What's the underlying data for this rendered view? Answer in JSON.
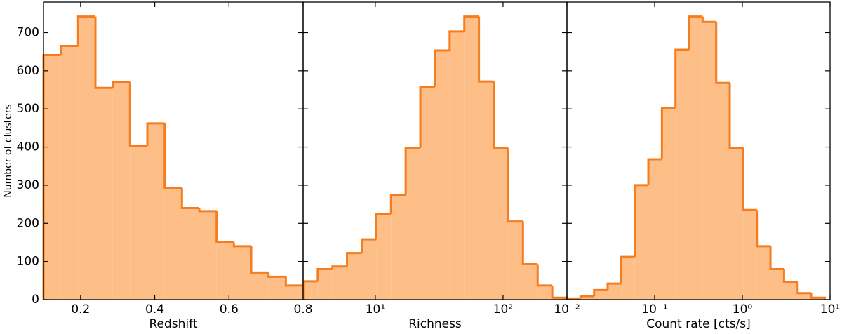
{
  "chart_data": [
    {
      "type": "histogram",
      "xlabel": "Redshift",
      "ylabel": "Number of clusters",
      "xscale": "linear",
      "color": "#fdbf87",
      "edgecolor": "#f57c1f",
      "bins": [
        0.1,
        0.1467,
        0.1933,
        0.24,
        0.2867,
        0.3333,
        0.38,
        0.4267,
        0.4733,
        0.52,
        0.5667,
        0.6133,
        0.66,
        0.7067,
        0.7533,
        0.8
      ],
      "values": [
        641,
        665,
        742,
        555,
        570,
        403,
        462,
        292,
        240,
        232,
        150,
        140,
        71,
        60,
        37
      ],
      "xlim": [
        0.1,
        0.8
      ],
      "xticks": [
        0.2,
        0.4,
        0.6,
        0.8
      ],
      "ylim": [
        0,
        780
      ],
      "yticks": [
        0,
        100,
        200,
        300,
        400,
        500,
        600,
        700
      ]
    },
    {
      "type": "histogram",
      "xlabel": "Richness",
      "xscale": "log",
      "color": "#fdbf87",
      "edgecolor": "#f57c1f",
      "bins": [
        2.72,
        3.54,
        4.61,
        6.0,
        7.82,
        10.19,
        13.27,
        17.28,
        22.51,
        29.33,
        38.19,
        49.75,
        64.8,
        84.41,
        109.9,
        143.2,
        186.6,
        243.0,
        316.5
      ],
      "values": [
        48,
        80,
        87,
        122,
        158,
        225,
        275,
        398,
        558,
        653,
        703,
        742,
        572,
        397,
        205,
        93,
        37,
        5
      ],
      "xlim": [
        2.72,
        316.5
      ],
      "xticks": [
        {
          "value": 10,
          "label": "10¹"
        },
        {
          "value": 100,
          "label": "10²"
        }
      ],
      "ylim": [
        0,
        780
      ],
      "yticks": [
        0,
        100,
        200,
        300,
        400,
        500,
        600,
        700
      ]
    },
    {
      "type": "histogram",
      "xlabel": "Count rate [cts/s]",
      "xscale": "log",
      "color": "#fdbf87",
      "edgecolor": "#f57c1f",
      "bins": [
        0.01,
        0.01428,
        0.0204,
        0.02911,
        0.04158,
        0.05937,
        0.08477,
        0.121,
        0.1728,
        0.2467,
        0.3524,
        0.5032,
        0.7184,
        1.026,
        1.465,
        2.092,
        2.987,
        4.265,
        6.088,
        8.695
      ],
      "values": [
        3,
        9,
        25,
        42,
        112,
        300,
        368,
        503,
        655,
        742,
        728,
        568,
        398,
        235,
        140,
        80,
        47,
        17,
        5
      ],
      "xlim": [
        0.01,
        10
      ],
      "xticks": [
        {
          "value": 0.01,
          "label": "10⁻²"
        },
        {
          "value": 0.1,
          "label": "10⁻¹"
        },
        {
          "value": 1,
          "label": "10⁰"
        },
        {
          "value": 10,
          "label": "10¹"
        }
      ],
      "ylim": [
        0,
        780
      ],
      "yticks": [
        0,
        100,
        200,
        300,
        400,
        500,
        600,
        700
      ]
    }
  ]
}
